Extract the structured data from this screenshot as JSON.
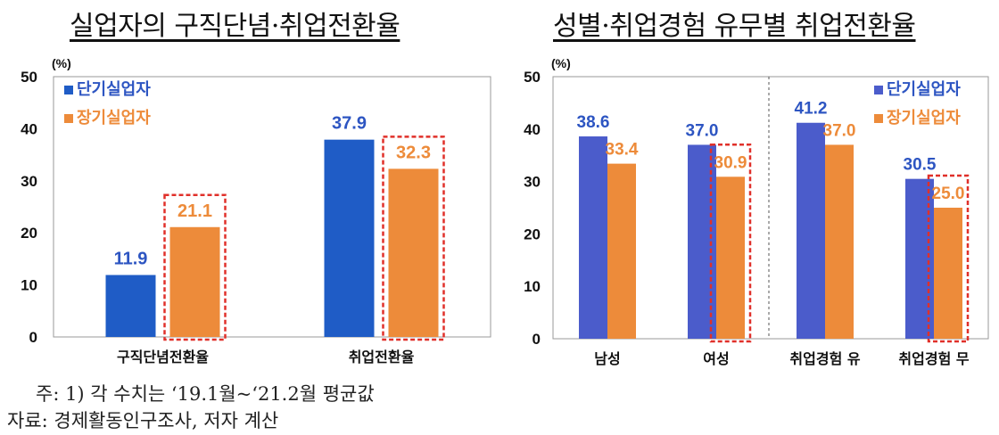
{
  "chart_data": [
    {
      "type": "bar",
      "title": "실업자의 구직단념·취업전환율",
      "ylabel": "(%)",
      "ylim": [
        0,
        50
      ],
      "yticks": [
        0,
        10,
        20,
        30,
        40,
        50
      ],
      "categories": [
        "구직단념전환율",
        "취업전환율"
      ],
      "series": [
        {
          "name": "단기실업자",
          "color": "#1f5cc6",
          "values": [
            11.9,
            37.9
          ],
          "value_labels": [
            "11.9",
            "37.9"
          ]
        },
        {
          "name": "장기실업자",
          "color": "#ed8b3a",
          "values": [
            21.1,
            32.3
          ],
          "value_labels": [
            "21.1",
            "32.3"
          ]
        }
      ],
      "highlight": {
        "series": "장기실업자",
        "style": "red dashed box",
        "color": "#e0302a"
      },
      "legend_position": "top-left",
      "grid": false
    },
    {
      "type": "bar",
      "title": "성별·취업경험 유무별 취업전환율",
      "ylabel": "(%)",
      "ylim": [
        0,
        50
      ],
      "yticks": [
        0,
        10,
        20,
        30,
        40,
        50
      ],
      "categories": [
        "남성",
        "여성",
        "취업경험 유",
        "취업경험 무"
      ],
      "series": [
        {
          "name": "단기실업자",
          "color": "#4b5ccb",
          "values": [
            38.6,
            37.0,
            41.2,
            30.5
          ],
          "value_labels": [
            "38.6",
            "37.0",
            "41.2",
            "30.5"
          ]
        },
        {
          "name": "장기실업자",
          "color": "#ed8b3a",
          "values": [
            33.4,
            30.9,
            37.0,
            25.0
          ],
          "value_labels": [
            "33.4",
            "30.9",
            "37.0",
            "25.0"
          ]
        }
      ],
      "highlight": {
        "series": "장기실업자",
        "categories": [
          "여성",
          "취업경험 무"
        ],
        "style": "red dashed box",
        "color": "#e0302a"
      },
      "legend_position": "top-right",
      "grid": false,
      "separator": "dashed vertical line between 여성 and 취업경험 유"
    }
  ],
  "notes": {
    "note1": "주: 1) 각 수치는 ‘19.1월~‘21.2월 평균값",
    "note2": "자료: 경제활동인구조사, 저자 계산"
  }
}
